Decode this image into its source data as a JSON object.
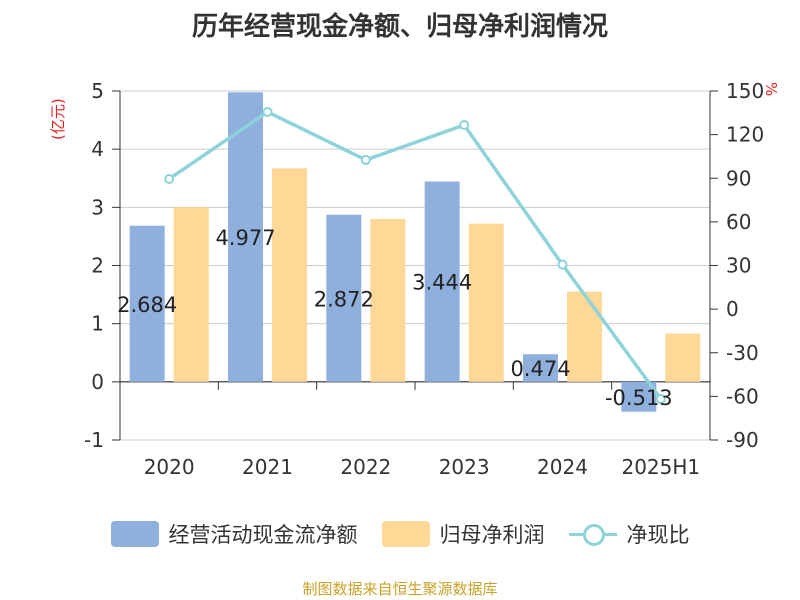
{
  "title": "历年经营现金净额、归母净利润情况",
  "source": "制图数据来自恒生聚源数据库",
  "chart_data": {
    "type": "bar",
    "title": "历年经营现金净额、归母净利润情况",
    "categories": [
      "2020",
      "2021",
      "2022",
      "2023",
      "2024",
      "2025H1"
    ],
    "y_left": {
      "unit": "(亿元)",
      "ylim": [
        -1,
        5
      ],
      "ticks": [
        -1,
        0,
        1,
        2,
        3,
        4,
        5
      ]
    },
    "y_right": {
      "unit": "%",
      "ylim": [
        -90,
        150
      ],
      "ticks": [
        -90,
        -60,
        -30,
        0,
        30,
        60,
        90,
        120,
        150
      ]
    },
    "series": [
      {
        "name": "经营活动现金流净额",
        "type": "bar",
        "axis": "left",
        "color": "#8fafdc",
        "values": [
          2.684,
          4.977,
          2.872,
          3.444,
          0.474,
          -0.513
        ],
        "labels": [
          "2.684",
          "4.977",
          "2.872",
          "3.444",
          "0.474",
          "-0.513"
        ]
      },
      {
        "name": "归母净利润",
        "type": "bar",
        "axis": "left",
        "color": "#ffd797",
        "values": [
          3.0,
          3.67,
          2.8,
          2.72,
          1.55,
          0.83
        ]
      },
      {
        "name": "净现比",
        "type": "line",
        "axis": "right",
        "color": "#8dd3da",
        "values": [
          89.5,
          135.6,
          102.6,
          126.6,
          30.6,
          -61.8
        ]
      }
    ],
    "legend_position": "bottom",
    "grid": true
  }
}
